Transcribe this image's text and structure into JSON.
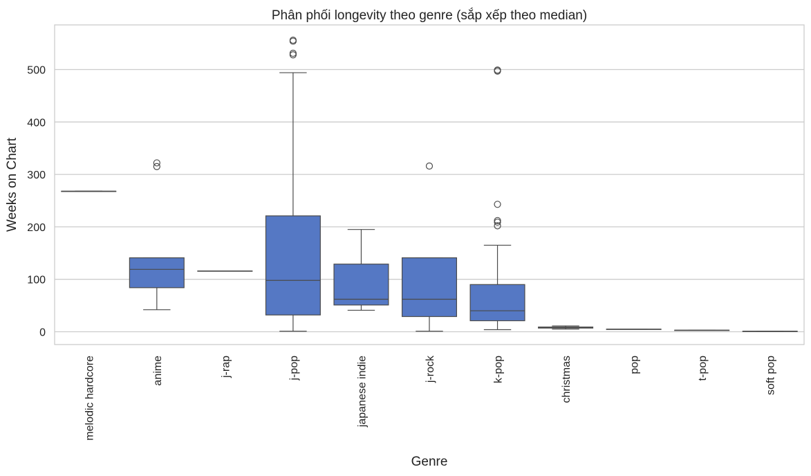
{
  "chart_data": {
    "type": "box",
    "title": "Phân phối longevity theo genre (sắp xếp theo median)",
    "xlabel": "Genre",
    "ylabel": "Weeks on Chart",
    "ylim": [
      -25,
      585
    ],
    "yticks": [
      0,
      100,
      200,
      300,
      400,
      500
    ],
    "grid": "horizontal",
    "box_color": "#5578c4",
    "line_color": "#4a4a4a",
    "categories": [
      "melodic hardcore",
      "anime",
      "j-rap",
      "j-pop",
      "japanese indie",
      "j-rock",
      "k-pop",
      "christmas",
      "pop",
      "t-pop",
      "soft pop"
    ],
    "boxes": [
      {
        "category": "melodic hardcore",
        "whislo": 268,
        "q1": 268,
        "med": 268,
        "q3": 268,
        "whishi": 268,
        "fliers": []
      },
      {
        "category": "anime",
        "whislo": 42,
        "q1": 84,
        "med": 119,
        "q3": 141,
        "whishi": 141,
        "fliers": [
          315,
          322
        ]
      },
      {
        "category": "j-rap",
        "whislo": 116,
        "q1": 116,
        "med": 116,
        "q3": 116,
        "whishi": 116,
        "fliers": []
      },
      {
        "category": "j-pop",
        "whislo": 1,
        "q1": 32,
        "med": 98,
        "q3": 221,
        "whishi": 494,
        "fliers": [
          528,
          531,
          554,
          556
        ]
      },
      {
        "category": "japanese indie",
        "whislo": 41,
        "q1": 51,
        "med": 62,
        "q3": 129,
        "whishi": 195,
        "fliers": []
      },
      {
        "category": "j-rock",
        "whislo": 1,
        "q1": 29,
        "med": 62,
        "q3": 141,
        "whishi": 141,
        "fliers": [
          316
        ]
      },
      {
        "category": "k-pop",
        "whislo": 4,
        "q1": 21,
        "med": 40,
        "q3": 90,
        "whishi": 165,
        "fliers": [
          202,
          209,
          212,
          243,
          497,
          499
        ]
      },
      {
        "category": "christmas",
        "whislo": 5,
        "q1": 7,
        "med": 8,
        "q3": 9,
        "whishi": 11,
        "fliers": []
      },
      {
        "category": "pop",
        "whislo": 5,
        "q1": 5,
        "med": 5,
        "q3": 5,
        "whishi": 5,
        "fliers": []
      },
      {
        "category": "t-pop",
        "whislo": 3,
        "q1": 3,
        "med": 3,
        "q3": 3,
        "whishi": 3,
        "fliers": []
      },
      {
        "category": "soft pop",
        "whislo": 1,
        "q1": 1,
        "med": 1,
        "q3": 1,
        "whishi": 1,
        "fliers": []
      }
    ]
  }
}
